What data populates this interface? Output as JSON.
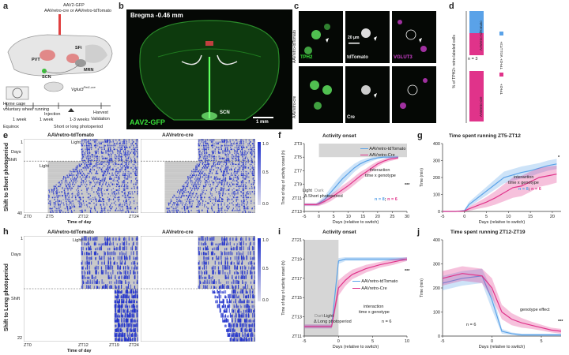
{
  "colors": {
    "tdtomato": "#5aa2e8",
    "cre": "#e0338a",
    "gfp": "#38e038",
    "vglut3": "#c040c0",
    "actogram": "#2233cc",
    "shade": "#c8c8c8"
  },
  "panel_a": {
    "label": "a",
    "virus_line1": "AAV2-GFP",
    "virus_line2": "AAVretro-cre or AAVretro-tdTomato",
    "regions": {
      "pvt": "PVT",
      "sfi": "SFi",
      "scn": "SCN",
      "mrn": "MRN"
    },
    "mouse_line": "Vglut3",
    "mouse_sup": "Pet1-cre",
    "cage_line1": "Home cage",
    "cage_line2": "voluntary wheel running",
    "timeline": {
      "injection": "Injection",
      "harvest": "Harvest",
      "validation": "Validation",
      "week1": "1 week",
      "week2": "1 week",
      "weeks": "1-3 weeks",
      "equinox": "Equinox",
      "photoperiod": "Short or long photoperiod"
    }
  },
  "panel_b": {
    "label": "b",
    "bregma": "Bregma -0.46 mm",
    "scn": "SCN",
    "stain": "AAV2-GFP",
    "scale": "1 mm"
  },
  "panel_c": {
    "label": "c",
    "row1": "AAVretro-tdTomato",
    "row2": "AAVretro-cre",
    "tph2": "TPH2",
    "tdtomato": "tdTomato",
    "vglut3": "VGLUT3",
    "cre": "Cre",
    "scale": "20 μm"
  },
  "panel_d": {
    "label": "d",
    "ylabel": "% of TPH2+ retro-labeled cells",
    "n": "n = 3",
    "legend1": "TPH2+ VGLUT3+",
    "legend2": "TPH2+",
    "bar1_label": "AAVretro-tdTomato",
    "bar2_label": "AAVretro-cre"
  },
  "actograms_short": {
    "label": "e",
    "side_label": "Shift to Short photoperiod",
    "left_title": "AAVretro-tdTomato",
    "right_title": "AAVretro-cre",
    "ylabel": "Days",
    "xlabel": "Time of day",
    "light": "Light",
    "shift": "Shift",
    "light2": "Light",
    "day_start": "1",
    "day_end": "40",
    "ticks": [
      "ZT0",
      "ZT5",
      "ZT12",
      "ZT24"
    ],
    "scale": [
      "1.0",
      "0.5",
      "0.0"
    ]
  },
  "actograms_long": {
    "label": "h",
    "side_label": "Shift to Long photoperiod",
    "left_title": "AAVretro-tdTomato",
    "right_title": "AAVretro-cre",
    "ylabel": "Days",
    "xlabel": "Time of day",
    "light": "Light",
    "shift": "Shift",
    "day_start": "1",
    "day_end": "22",
    "ticks": [
      "ZT0",
      "ZT12",
      "ZT19",
      "ZT24"
    ],
    "scale": [
      "1.0",
      "0.5",
      "0.0"
    ]
  },
  "panel_f": {
    "label": "f",
    "title": "Activity onset",
    "legend1": "AAVretro-tdTomato",
    "legend2": "AAVretro-Cre",
    "interaction": "interaction",
    "interaction2": "time x genotype",
    "sig": "***",
    "n_td": "n = 8",
    "n_sep": ";",
    "n_cre": "n = 6",
    "light": "Light",
    "dark": "Dark",
    "photoperiod": "Δ Short photoperiod"
  },
  "panel_g": {
    "label": "g",
    "title": "Time spent running ZT5-ZT12",
    "interaction": "interaction",
    "interaction2": "time x genotype",
    "sig": "*",
    "n_td": "n = 8",
    "n_sep": ";",
    "n_cre": "n = 6"
  },
  "panel_i": {
    "label": "i",
    "title": "Activity onset",
    "legend1": "AAVretro-tdTomato",
    "legend2": "AAVretro-Cre",
    "interaction": "interaction",
    "interaction2": "time x genotype",
    "sig": "***",
    "n": "n = 6",
    "light": "Light",
    "dark": "Dark",
    "photoperiod": "Δ Long photoperiod"
  },
  "panel_j": {
    "label": "j",
    "title": "Time spent running ZT12-ZT19",
    "effect": "genotype effect",
    "sig": "***",
    "n": "n = 6"
  },
  "chart_data": [
    {
      "id": "f",
      "type": "line",
      "title": "Activity onset",
      "xlabel": "Days (relative to switch)",
      "ylabel": "Time of day of activity onset (h)",
      "xlim": [
        -5,
        30
      ],
      "ylim": [
        13,
        3
      ],
      "xticks": [
        -5,
        0,
        5,
        10,
        15,
        20,
        25,
        30
      ],
      "yticks": [
        13,
        11,
        9,
        7,
        5,
        3
      ],
      "ytick_labels": [
        "ZT13",
        "ZT11",
        "ZT9",
        "ZT7",
        "ZT5",
        "ZT3"
      ],
      "series": [
        {
          "name": "AAVretro-tdTomato",
          "color": "#5aa2e8",
          "x": [
            -5,
            -1,
            0,
            2,
            4,
            6,
            8,
            10,
            12,
            14,
            16,
            18,
            20,
            22,
            24,
            27
          ],
          "y": [
            12,
            12,
            11.8,
            11.2,
            10.2,
            9.2,
            8.2,
            7.4,
            6.6,
            6,
            5.6,
            5.3,
            5.1,
            5,
            5,
            5
          ],
          "err": [
            0.2,
            0.2,
            0.3,
            0.5,
            0.7,
            0.8,
            0.8,
            0.7,
            0.6,
            0.5,
            0.4,
            0.3,
            0.2,
            0.2,
            0.2,
            0.2
          ]
        },
        {
          "name": "AAVretro-Cre",
          "color": "#e0338a",
          "x": [
            -5,
            -1,
            0,
            2,
            4,
            6,
            8,
            10,
            12,
            14,
            16,
            18,
            20,
            22,
            24,
            27
          ],
          "y": [
            12,
            12,
            11.9,
            11.5,
            11,
            10.4,
            9.8,
            9.2,
            8.5,
            7.8,
            7.2,
            6.6,
            6,
            5.6,
            5.3,
            5.1
          ],
          "err": [
            0.2,
            0.2,
            0.3,
            0.4,
            0.5,
            0.5,
            0.6,
            0.6,
            0.6,
            0.6,
            0.5,
            0.5,
            0.4,
            0.3,
            0.3,
            0.2
          ]
        }
      ]
    },
    {
      "id": "g",
      "type": "line",
      "title": "Time spent running ZT5-ZT12",
      "xlabel": "Days (relative to switch)",
      "ylabel": "Time (min)",
      "xlim": [
        -5,
        22
      ],
      "ylim": [
        0,
        400
      ],
      "xticks": [
        -5,
        0,
        5,
        10,
        15,
        20
      ],
      "yticks": [
        0,
        100,
        200,
        300,
        400
      ],
      "series": [
        {
          "name": "AAVretro-tdTomato",
          "color": "#5aa2e8",
          "x": [
            -5,
            -2,
            0,
            1,
            3,
            5,
            7,
            9,
            11,
            13,
            15,
            17,
            19,
            21
          ],
          "y": [
            0,
            0,
            5,
            40,
            80,
            120,
            160,
            200,
            215,
            230,
            240,
            255,
            270,
            280
          ],
          "err": [
            0,
            0,
            5,
            15,
            20,
            25,
            30,
            35,
            35,
            35,
            35,
            30,
            30,
            30
          ]
        },
        {
          "name": "AAVretro-Cre",
          "color": "#e0338a",
          "x": [
            -5,
            -2,
            0,
            1,
            3,
            5,
            7,
            9,
            11,
            13,
            15,
            17,
            19,
            21
          ],
          "y": [
            0,
            0,
            3,
            15,
            35,
            55,
            80,
            110,
            140,
            150,
            175,
            200,
            210,
            220
          ],
          "err": [
            0,
            0,
            3,
            12,
            20,
            30,
            40,
            50,
            60,
            60,
            60,
            55,
            55,
            50
          ]
        }
      ]
    },
    {
      "id": "i",
      "type": "line",
      "title": "Activity onset",
      "xlabel": "Days (relative to switch)",
      "ylabel": "Time of day of activity onset (h)",
      "xlim": [
        -5,
        10
      ],
      "ylim": [
        11,
        21
      ],
      "xticks": [
        -5,
        0,
        5,
        10
      ],
      "yticks": [
        11,
        13,
        15,
        17,
        19,
        21
      ],
      "ytick_labels": [
        "ZT11",
        "ZT13",
        "ZT15",
        "ZT17",
        "ZT19",
        "ZT21"
      ],
      "series": [
        {
          "name": "AAVretro-tdTomato",
          "color": "#5aa2e8",
          "x": [
            -5,
            -2,
            -1,
            0,
            1,
            2,
            4,
            6,
            8,
            10
          ],
          "y": [
            12,
            12,
            12,
            18.8,
            19,
            19,
            19,
            19,
            19,
            19
          ],
          "err": [
            0.2,
            0.2,
            0.2,
            0.3,
            0.2,
            0.2,
            0.2,
            0.2,
            0.2,
            0.2
          ]
        },
        {
          "name": "AAVretro-Cre",
          "color": "#e0338a",
          "x": [
            -5,
            -2,
            -1,
            0,
            1,
            2,
            4,
            6,
            8,
            10
          ],
          "y": [
            12,
            12,
            12,
            16,
            16.8,
            17.4,
            18,
            18.4,
            18.7,
            19
          ],
          "err": [
            0.2,
            0.2,
            0.2,
            0.8,
            0.6,
            0.5,
            0.4,
            0.3,
            0.3,
            0.2
          ]
        }
      ]
    },
    {
      "id": "j",
      "type": "line",
      "title": "Time spent running ZT12-ZT19",
      "xlabel": "Days (relative to switch)",
      "ylabel": "Time (min)",
      "xlim": [
        -5,
        7
      ],
      "ylim": [
        0,
        400
      ],
      "xticks": [
        -5,
        0,
        5
      ],
      "yticks": [
        0,
        100,
        200,
        300,
        400
      ],
      "series": [
        {
          "name": "AAVretro-tdTomato",
          "color": "#5aa2e8",
          "x": [
            -5,
            -3,
            -1,
            0,
            1,
            2,
            3,
            4,
            5,
            6,
            7
          ],
          "y": [
            220,
            240,
            250,
            150,
            20,
            10,
            5,
            5,
            5,
            5,
            5
          ],
          "err": [
            30,
            30,
            30,
            40,
            10,
            5,
            5,
            5,
            5,
            5,
            5
          ]
        },
        {
          "name": "AAVretro-Cre",
          "color": "#e0338a",
          "x": [
            -5,
            -3,
            -1,
            0,
            1,
            2,
            3,
            4,
            5,
            6,
            7
          ],
          "y": [
            240,
            260,
            250,
            200,
            100,
            70,
            55,
            45,
            35,
            25,
            20
          ],
          "err": [
            30,
            30,
            30,
            40,
            30,
            25,
            20,
            15,
            12,
            10,
            10
          ]
        }
      ]
    },
    {
      "id": "d",
      "type": "bar",
      "title": "",
      "ylabel": "% of TPH2+ retro-labeled cells",
      "categories": [
        "AAVretro-tdTomato",
        "AAVretro-cre"
      ],
      "ylim": [
        0,
        100
      ],
      "series": [
        {
          "name": "TPH2+",
          "values": [
            50,
            100
          ],
          "color": "#e0338a"
        },
        {
          "name": "TPH2+ VGLUT3+",
          "values": [
            50,
            0
          ],
          "color": "#5aa2e8"
        }
      ]
    }
  ]
}
